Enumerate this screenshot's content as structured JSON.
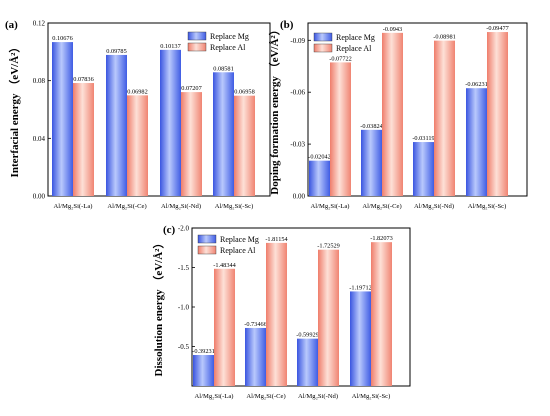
{
  "chart_data": [
    {
      "panel": "(a)",
      "type": "bar",
      "ylabel": "Interfacial energy （eV/Å²）",
      "categories": [
        "Al/Mg₂Si(-La)",
        "Al/Mg₂Si(-Ce)",
        "Al/Mg₂Si(-Nd)",
        "Al/Mg₂Si(-Sc)"
      ],
      "series": [
        {
          "name": "Replace Mg",
          "values": [
            0.10676,
            0.09785,
            0.10137,
            0.08581
          ],
          "labels": [
            "0.10676",
            "0.09785",
            "0.10137",
            "0.08581"
          ]
        },
        {
          "name": "Replace Al",
          "values": [
            0.07836,
            0.06982,
            0.07207,
            0.06958
          ],
          "labels": [
            "0.07836",
            "0.06982",
            "0.07207",
            "0.06958"
          ]
        }
      ],
      "ylim": [
        0.0,
        0.12
      ],
      "yticks": [
        0.0,
        0.04,
        0.08,
        0.12
      ],
      "ytick_labels": [
        "0.00",
        "0.04",
        "0.08",
        "0.12"
      ],
      "legend": "top-right"
    },
    {
      "panel": "(b)",
      "type": "bar",
      "ylabel": "Doping formation energy （eV/Å²）",
      "categories": [
        "Al/Mg₂Si(-La)",
        "Al/Mg₂Si(-Ce)",
        "Al/Mg₂Si(-Nd)",
        "Al/Mg₂Si(-Sc)"
      ],
      "series": [
        {
          "name": "Replace Mg",
          "values": [
            -0.02042,
            -0.03824,
            -0.03119,
            -0.06231
          ],
          "labels": [
            "-0.02042",
            "-0.03824",
            "-0.03119",
            "-0.06231"
          ]
        },
        {
          "name": "Replace Al",
          "values": [
            -0.07722,
            -0.0943,
            -0.08981,
            -0.09477
          ],
          "labels": [
            "-0.07722",
            "-0.0943",
            "-0.08981",
            "-0.09477"
          ]
        }
      ],
      "ylim": [
        0.0,
        -0.1
      ],
      "inverted": true,
      "yticks": [
        0.0,
        -0.03,
        -0.06,
        -0.09
      ],
      "ytick_labels": [
        "0.00",
        "-0.03",
        "-0.06",
        "-0.09"
      ],
      "legend": "top-left"
    },
    {
      "panel": "(c)",
      "type": "bar",
      "ylabel": "Dissolution energy （eV/Å²）",
      "categories": [
        "Al/Mg₂Si(-La)",
        "Al/Mg₂Si(-Ce)",
        "Al/Mg₂Si(-Nd)",
        "Al/Mg₂Si(-Sc)"
      ],
      "series": [
        {
          "name": "Replace Mg",
          "values": [
            -0.39231,
            -0.73466,
            -0.59929,
            -1.19712
          ],
          "labels": [
            "-0.39231",
            "-0.73466",
            "-0.59929",
            "-1.19712"
          ]
        },
        {
          "name": "Replace Al",
          "values": [
            -1.48344,
            -1.81154,
            -1.72529,
            -1.82073
          ],
          "labels": [
            "-1.48344",
            "-1.81154",
            "-1.72529",
            "-1.82073"
          ]
        }
      ],
      "ylim": [
        0.0,
        -2.0
      ],
      "inverted": true,
      "yticks": [
        -0.5,
        -1.0,
        -1.5,
        -2.0
      ],
      "ytick_labels": [
        "-0.5",
        "-1.0",
        "-1.5",
        "-2.0"
      ],
      "legend": "top-left"
    }
  ],
  "colors": {
    "replace_mg_fill": "#4a6cf0",
    "replace_mg_light": "#a9bdfb",
    "replace_al_fill": "#f28b7a",
    "replace_al_light": "#fbd0c6"
  }
}
